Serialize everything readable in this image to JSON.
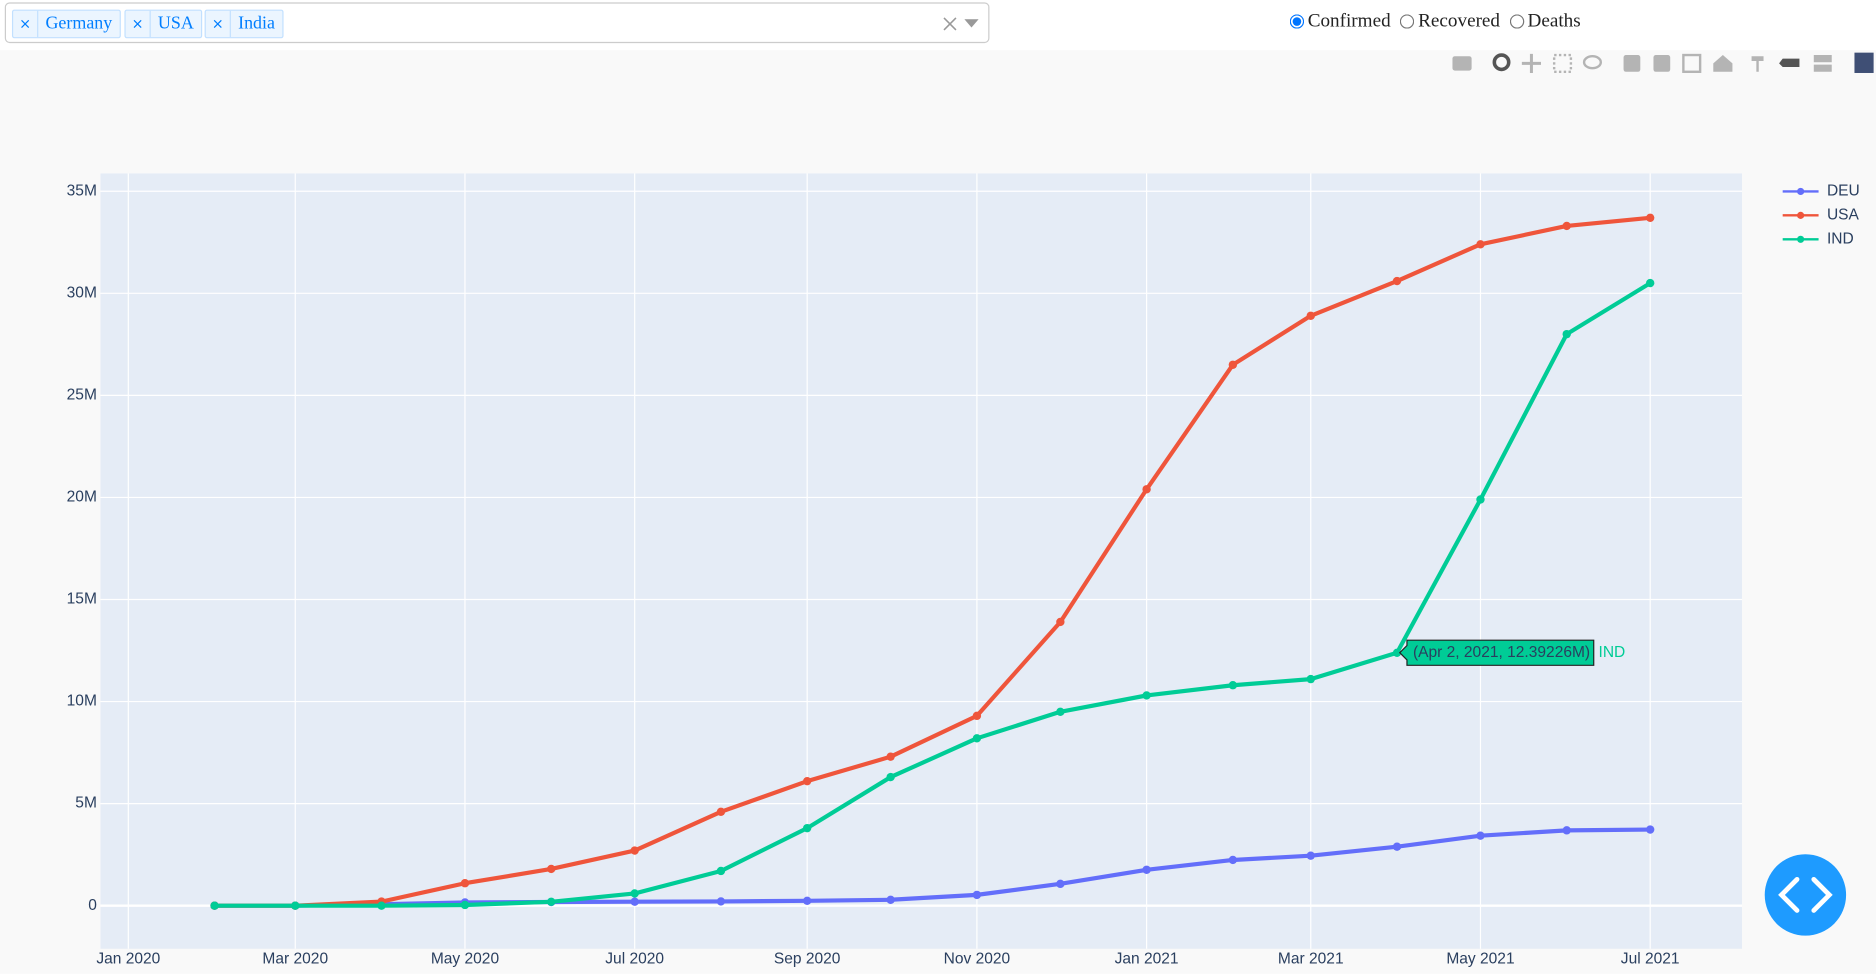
{
  "controls": {
    "countries": {
      "selected": [
        "Germany",
        "USA",
        "India"
      ]
    },
    "metric": {
      "options": [
        {
          "label": "Confirmed",
          "checked": true
        },
        {
          "label": "Recovered",
          "checked": false
        },
        {
          "label": "Deaths",
          "checked": false
        }
      ]
    }
  },
  "chart_data": {
    "type": "line",
    "mode": "lines+markers",
    "x": [
      "2020-02",
      "2020-03",
      "2020-04",
      "2020-05",
      "2020-06",
      "2020-07",
      "2020-08",
      "2020-09",
      "2020-10",
      "2020-11",
      "2020-12",
      "2021-01",
      "2021-02",
      "2021-03",
      "2021-04",
      "2021-05",
      "2021-06",
      "2021-07"
    ],
    "series": [
      {
        "name": "DEU",
        "color": "#636efa",
        "values": [
          0,
          100,
          70000,
          160000,
          180000,
          195000,
          210000,
          240000,
          290000,
          530000,
          1070000,
          1760000,
          2240000,
          2450000,
          2890000,
          3430000,
          3690000,
          3730000
        ]
      },
      {
        "name": "USA",
        "color": "#ef553b",
        "values": [
          8,
          30,
          200000,
          1100000,
          1800000,
          2700000,
          4600000,
          6100000,
          7300000,
          9300000,
          13900000,
          20400000,
          26500000,
          28900000,
          30600000,
          32400000,
          33300000,
          33700000
        ]
      },
      {
        "name": "IND",
        "color": "#00cc96",
        "values": [
          1,
          3,
          1900,
          35000,
          190000,
          600000,
          1700000,
          3800000,
          6300000,
          8200000,
          9500000,
          10300000,
          10800000,
          11100000,
          12390000,
          19900000,
          28000000,
          30500000
        ]
      }
    ],
    "xlim": [
      "2019-12-22",
      "2021-08-03"
    ],
    "xticks": [
      {
        "value": "2020-01",
        "label": "Jan 2020"
      },
      {
        "value": "2020-03",
        "label": "Mar 2020"
      },
      {
        "value": "2020-05",
        "label": "May 2020"
      },
      {
        "value": "2020-07",
        "label": "Jul 2020"
      },
      {
        "value": "2020-09",
        "label": "Sep 2020"
      },
      {
        "value": "2020-11",
        "label": "Nov 2020"
      },
      {
        "value": "2021-01",
        "label": "Jan 2021"
      },
      {
        "value": "2021-03",
        "label": "Mar 2021"
      },
      {
        "value": "2021-05",
        "label": "May 2021"
      },
      {
        "value": "2021-07",
        "label": "Jul 2021"
      }
    ],
    "ylim": [
      -2110000,
      35870000
    ],
    "yticks": [
      0,
      {
        "value": 5000000,
        "label": "5M"
      },
      {
        "value": 10000000,
        "label": "10M"
      },
      {
        "value": 15000000,
        "label": "15M"
      },
      {
        "value": 20000000,
        "label": "20M"
      },
      {
        "value": 25000000,
        "label": "25M"
      },
      {
        "value": 30000000,
        "label": "30M"
      },
      {
        "value": 35000000,
        "label": "35M"
      }
    ],
    "grid": true,
    "legend": "right",
    "hover": {
      "label": "(Apr 2, 2021, 12.39226M)",
      "series": "IND",
      "x": "2021-04-02",
      "y": 12392260
    }
  }
}
